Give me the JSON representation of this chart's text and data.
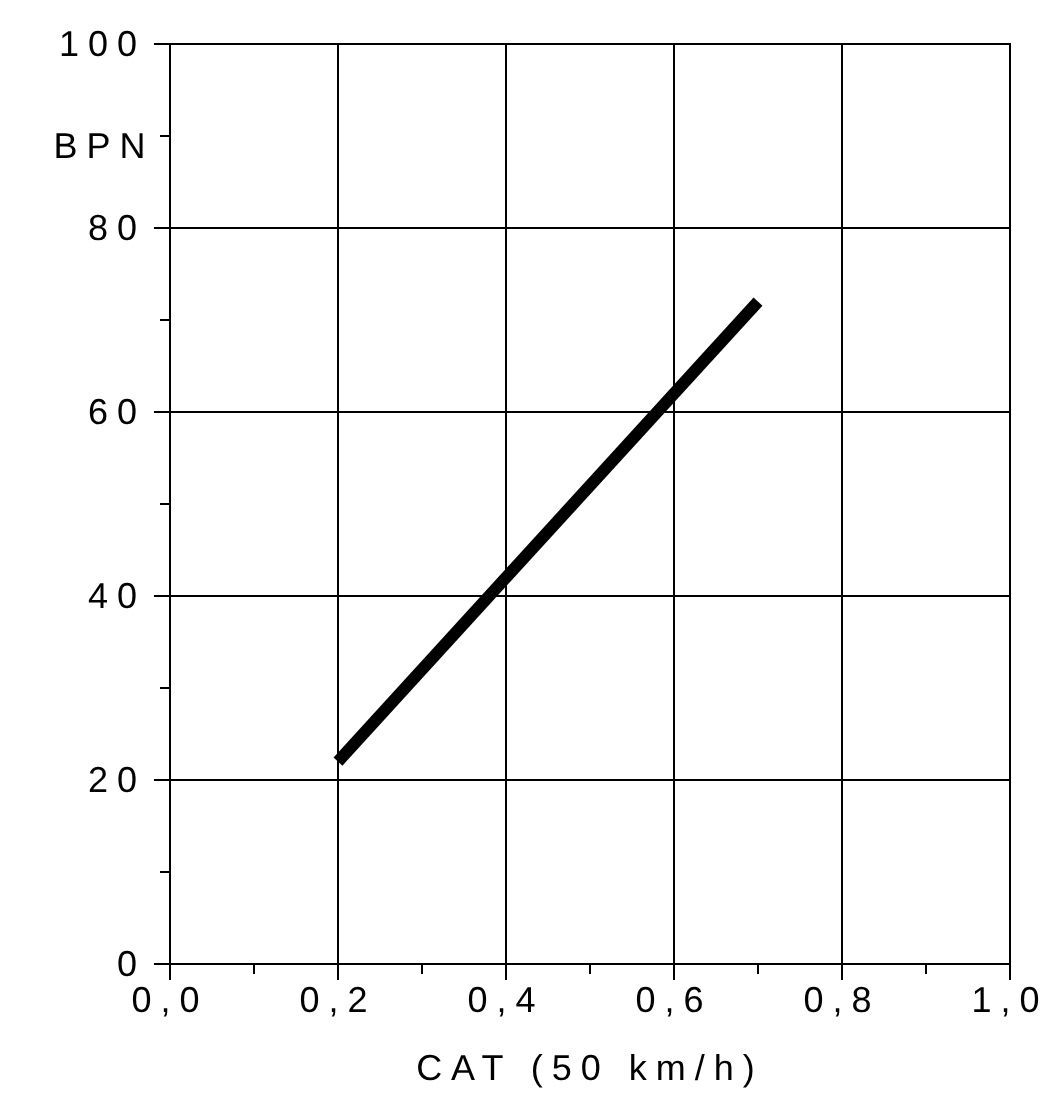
{
  "chart_data": {
    "type": "line",
    "xlabel": "CAT (50 km/h)",
    "ylabel": "BPN",
    "x": [
      0.2,
      0.7
    ],
    "series": [
      {
        "color": "#000000",
        "values": [
          22,
          72
        ]
      }
    ],
    "xlim": [
      0,
      1
    ],
    "ylim": [
      0,
      100
    ],
    "xticks": [
      {
        "value": 0,
        "label": "0,0"
      },
      {
        "value": 0.1,
        "label": null
      },
      {
        "value": 0.2,
        "label": "0,2"
      },
      {
        "value": 0.3,
        "label": null
      },
      {
        "value": 0.4,
        "label": "0,4"
      },
      {
        "value": 0.5,
        "label": null
      },
      {
        "value": 0.6,
        "label": "0,6"
      },
      {
        "value": 0.7,
        "label": null
      },
      {
        "value": 0.8,
        "label": "0,8"
      },
      {
        "value": 0.9,
        "label": null
      },
      {
        "value": 1,
        "label": "1,0"
      }
    ],
    "yticks": [
      0,
      {
        "value": 10,
        "label": null
      },
      20,
      {
        "value": 30,
        "label": null
      },
      40,
      {
        "value": 50,
        "label": null
      },
      60,
      {
        "value": 70,
        "label": null
      },
      80,
      {
        "value": 90,
        "label": null
      },
      100
    ],
    "grid": true,
    "marker": "none",
    "line_style": "solid"
  }
}
